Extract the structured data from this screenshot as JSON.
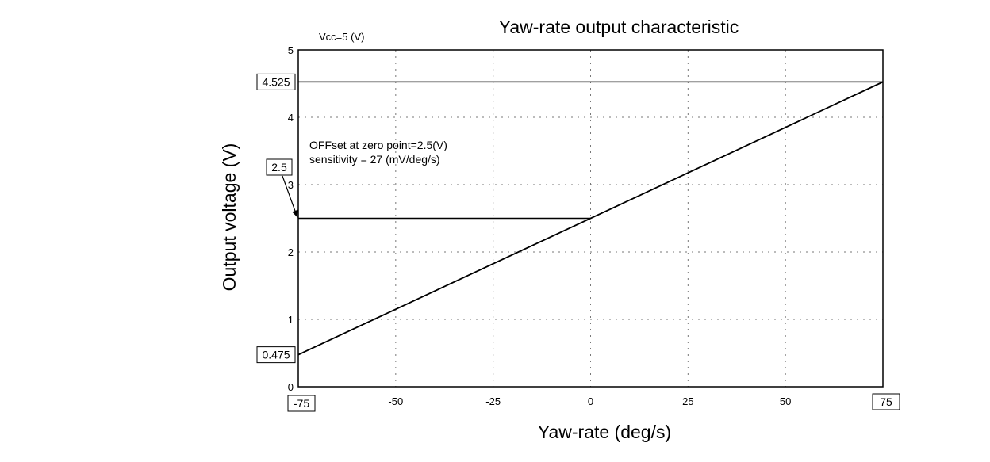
{
  "chart_data": {
    "type": "line",
    "title": "Yaw-rate output characteristic",
    "xlabel": "Yaw-rate (deg/s)",
    "ylabel": "Output voltage (V)",
    "supply_label": "Vcc=5 (V)",
    "xlim": [
      -75,
      75
    ],
    "ylim": [
      0,
      5
    ],
    "x_ticks": [
      -75,
      -50,
      -25,
      0,
      25,
      50,
      75
    ],
    "x_tick_labels": [
      "-75",
      "-50",
      "-25",
      "0",
      "25",
      "50",
      "75"
    ],
    "y_ticks": [
      0,
      1,
      2,
      3,
      4,
      5
    ],
    "y_tick_labels": [
      "0",
      "1",
      "2",
      "3",
      "4",
      "5"
    ],
    "grid": true,
    "legend": "none",
    "series": [
      {
        "x": [
          -75,
          75
        ],
        "y": [
          0.475,
          4.525
        ]
      }
    ],
    "reference_lines": [
      {
        "y": 4.525,
        "x_from": -75,
        "x_to": 75
      },
      {
        "y": 2.5,
        "x_from": -75,
        "x_to": 0
      }
    ],
    "boxed_labels": {
      "y_max": "4.525",
      "y_offset": "2.5",
      "y_min": "0.475",
      "x_min": "-75",
      "x_max": "75"
    },
    "annotations": [
      "OFFset at zero point=2.5(V)",
      "sensitivity = 27 (mV/deg/s)"
    ]
  }
}
